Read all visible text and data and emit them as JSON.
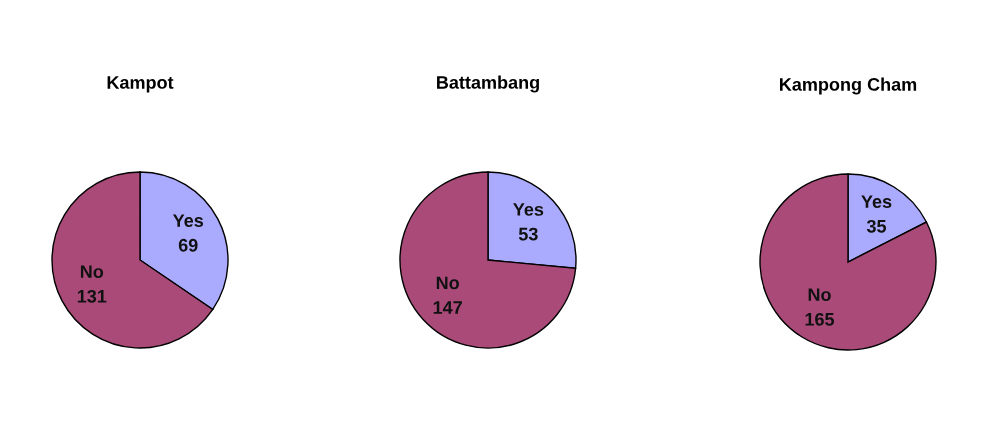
{
  "chart_data": [
    {
      "type": "pie",
      "title": "Kampot",
      "categories": [
        "Yes",
        "No"
      ],
      "values": [
        69,
        131
      ],
      "colors": [
        "#aaaaff",
        "#a94a78"
      ],
      "data_labels": true
    },
    {
      "type": "pie",
      "title": "Battambang",
      "categories": [
        "Yes",
        "No"
      ],
      "values": [
        53,
        147
      ],
      "colors": [
        "#aaaaff",
        "#a94a78"
      ],
      "data_labels": true
    },
    {
      "type": "pie",
      "title": "Kampong Cham",
      "categories": [
        "Yes",
        "No"
      ],
      "values": [
        35,
        165
      ],
      "colors": [
        "#aaaaff",
        "#a94a78"
      ],
      "data_labels": true
    }
  ]
}
